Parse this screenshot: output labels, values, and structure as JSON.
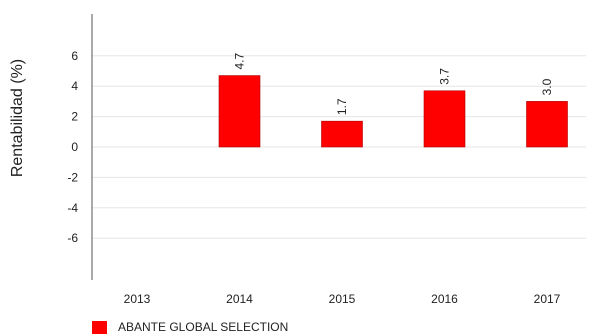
{
  "chart_data": {
    "type": "bar",
    "categories": [
      "2013",
      "2014",
      "2015",
      "2016",
      "2017"
    ],
    "series": [
      {
        "name": "ABANTE GLOBAL SELECTION",
        "color": "#ff0000",
        "values": [
          null,
          4.7,
          1.7,
          3.7,
          3.0
        ],
        "labels": [
          "",
          "4.7",
          "1.7",
          "3.7",
          "3.0"
        ]
      }
    ],
    "title": "",
    "xlabel": "",
    "ylabel": "Rentabilidad (%)",
    "ylim": [
      -9,
      9
    ],
    "yticks": [
      6,
      4,
      2,
      0,
      -2,
      -4,
      -6
    ],
    "ytick_labels": [
      "6",
      "4",
      "2",
      "0",
      "-2",
      "-4",
      "-6"
    ],
    "grid": true,
    "legend_position": "bottom-left"
  }
}
